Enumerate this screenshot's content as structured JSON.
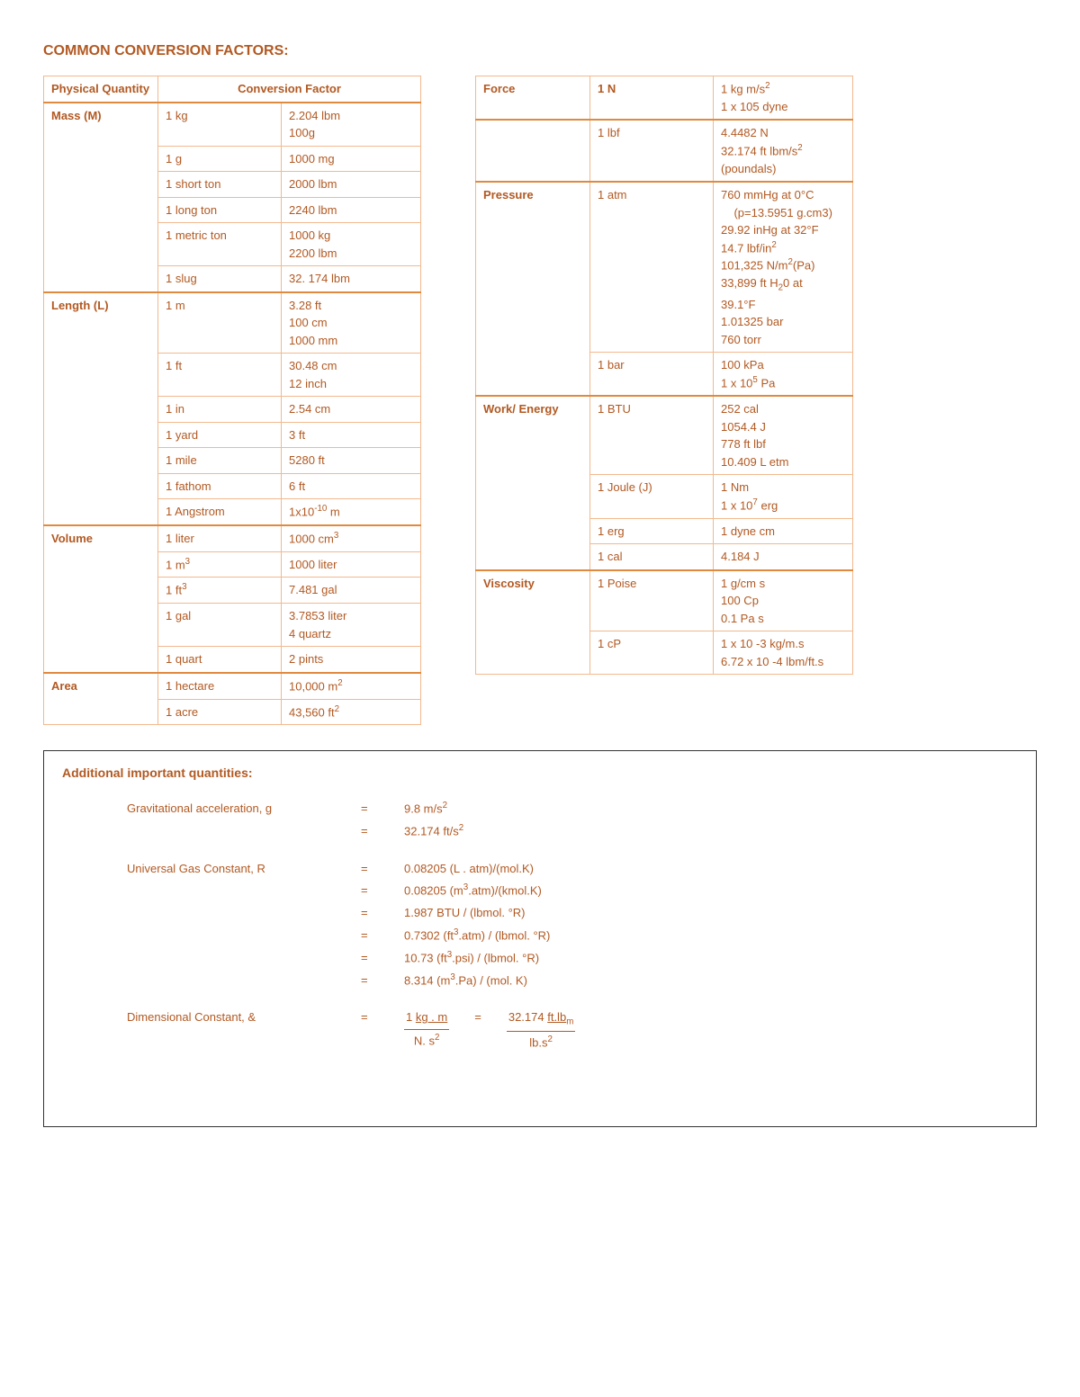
{
  "title": "COMMON CONVERSION FACTORS:",
  "colors": {
    "text": "#b25922",
    "border": "#f2b98e",
    "accent_border": "#e08a3f",
    "box_border": "#333333",
    "background": "#ffffff"
  },
  "font": {
    "family": "Arial",
    "body_size_pt": 10,
    "title_size_pt": 12
  },
  "headers": {
    "quantity": "Physical Quantity",
    "factor": "Conversion Factor"
  },
  "left_table": [
    {
      "quantity": "Mass (M)",
      "rows": [
        {
          "unit": "1 kg",
          "factor": "2.204 lbm\n100g"
        },
        {
          "unit": "1 g",
          "factor": "1000 mg"
        },
        {
          "unit": "1 short ton",
          "factor": "2000 lbm"
        },
        {
          "unit": "1 long ton",
          "factor": "2240 lbm"
        },
        {
          "unit": "1 metric ton",
          "factor": "1000 kg\n2200 lbm"
        },
        {
          "unit": "1 slug",
          "factor": "32. 174 lbm"
        }
      ]
    },
    {
      "quantity": "Length (L)",
      "rows": [
        {
          "unit": "1 m",
          "factor": "3.28 ft\n100 cm\n1000 mm"
        },
        {
          "unit": "1 ft",
          "factor": "30.48 cm\n12 inch"
        },
        {
          "unit": "1 in",
          "factor": "2.54 cm"
        },
        {
          "unit": "1 yard",
          "factor": "3 ft"
        },
        {
          "unit": "1 mile",
          "factor": "5280 ft"
        },
        {
          "unit": "1 fathom",
          "factor": "6 ft"
        },
        {
          "unit": "1 Angstrom",
          "factor_html": "1x10<sup>-10</sup> m"
        }
      ]
    },
    {
      "quantity": "Volume",
      "rows": [
        {
          "unit": "1 liter",
          "factor_html": "1000 cm<sup>3</sup>"
        },
        {
          "unit_html": "1 m<sup>3</sup>",
          "factor": "1000 liter"
        },
        {
          "unit_html": "1 ft<sup>3</sup>",
          "factor": "7.481 gal"
        },
        {
          "unit": "1 gal",
          "factor": "3.7853 liter\n4 quartz"
        },
        {
          "unit": "1 quart",
          "factor": "2 pints"
        }
      ]
    },
    {
      "quantity": "Area",
      "rows": [
        {
          "unit": "1 hectare",
          "factor_html": "10,000 m<sup>2</sup>"
        },
        {
          "unit": "1 acre",
          "factor_html": "43,560 ft<sup>2</sup>"
        }
      ]
    }
  ],
  "right_table": [
    {
      "quantity": "Force",
      "rows": [
        {
          "unit": "1 N",
          "factor_html": "1 kg m/s<sup>2</sup><br>1 x 105 dyne"
        },
        {
          "unit": "1 lbf",
          "factor_html": "4.4482 N<br>32.174 ft lbm/s<sup>2</sup><br>(poundals)"
        }
      ]
    },
    {
      "quantity": "Pressure",
      "rows": [
        {
          "unit": "1 atm",
          "factor_html": "760 mmHg at 0&deg;C<br>&nbsp;&nbsp;&nbsp;&nbsp;(p=13.5951 g.cm3)<br>29.92 inHg at 32&deg;F<br>14.7 lbf/in<sup>2</sup><br>101,325 N/m<sup>2</sup>(Pa)<br>33,899 ft H<sub>2</sub>0 at<br>39.1&deg;F<br>1.01325 bar<br>760 torr"
        },
        {
          "unit": "1 bar",
          "factor_html": "100 kPa<br>1 x 10<sup>5</sup> Pa"
        }
      ]
    },
    {
      "quantity": "Work/ Energy",
      "rows": [
        {
          "unit": "1 BTU",
          "factor_html": "252 cal<br>1054.4 J<br>778 ft lbf<br>10.409 L etm"
        },
        {
          "unit": "1 Joule (J)",
          "factor_html": "1 Nm<br>1 x 10<sup>7</sup> erg"
        },
        {
          "unit": "1 erg",
          "factor": "1 dyne cm"
        },
        {
          "unit": "1 cal",
          "factor": "4.184 J"
        }
      ]
    },
    {
      "quantity": "Viscosity",
      "rows": [
        {
          "unit": "1 Poise",
          "factor_html": "1 g/cm s<br>100 Cp<br>0.1 Pa s"
        },
        {
          "unit": "1 cP",
          "factor_html": "1 x 10 -3 kg/m.s<br>6.72 x 10 -4 lbm/ft.s"
        }
      ]
    }
  ],
  "additional": {
    "title": "Additional important quantities:",
    "items": [
      {
        "label": "Gravitational acceleration, g",
        "values_html": [
          "9.8 m/s<sup>2</sup>",
          "32.174 ft/s<sup>2</sup>"
        ]
      },
      {
        "label": "Universal Gas Constant, R",
        "values_html": [
          "0.08205 (L . atm)/(mol.K)",
          "0.08205 (m<sup>3</sup>.atm)/(kmol.K)",
          "1.987 BTU / (lbmol. &deg;R)",
          "0.7302 (ft<sup>3</sup>.atm) / (lbmol. &deg;R)",
          "10.73 (ft<sup>3</sup>.psi) / (lbmol. &deg;R)",
          "8.314 (m<sup>3</sup>.Pa) / (mol. K)"
        ]
      },
      {
        "label": "Dimensional Constant, &",
        "dimensional": {
          "left_num_html": "1 <u>kg . m</u>",
          "left_den_html": "N. s<sup>2</sup>",
          "right_num_html": "32.174 <u>ft.lb<sub>m</sub></u>",
          "right_den_html": "lb.s<sup>2</sup>"
        }
      }
    ]
  }
}
